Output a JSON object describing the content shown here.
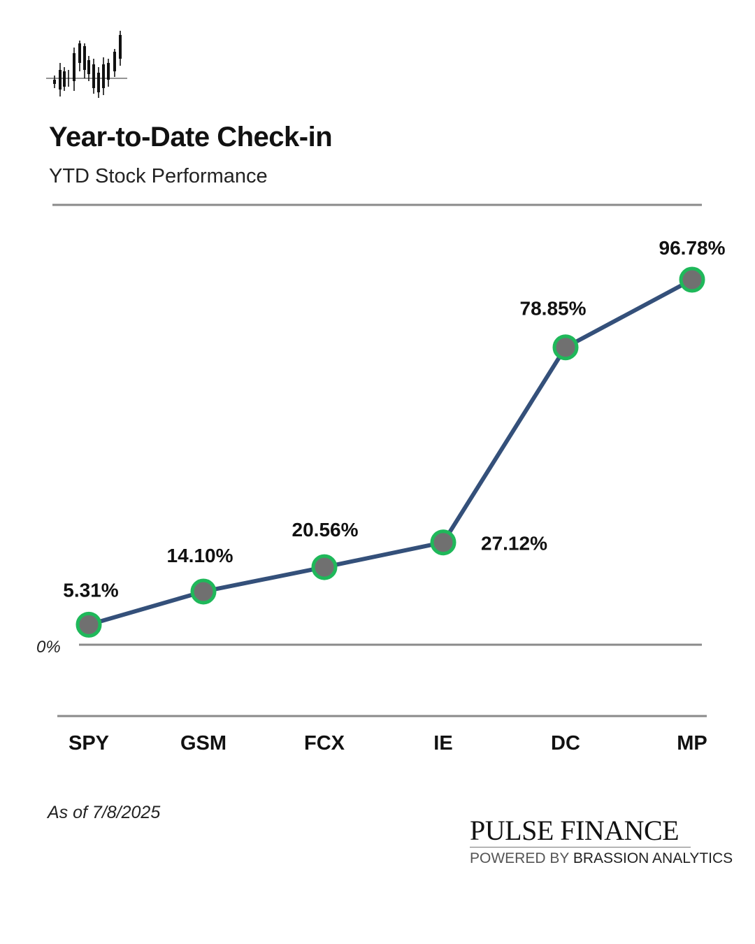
{
  "header": {
    "title": "Year-to-Date Check-in",
    "subtitle": "YTD Stock Performance"
  },
  "footer": {
    "as_of": "As of 7/8/2025",
    "brand_name": "PULSE FINANCE",
    "brand_tag_prefix": "POWERED BY ",
    "brand_tag_name": "BRASSION ANALYTICS"
  },
  "icons": {
    "logo": "candlestick-chart-icon"
  },
  "colors": {
    "line": "#34507a",
    "marker_fill": "#707070",
    "marker_ring": "#1fb85a",
    "rule": "#8a8a8a"
  },
  "chart_data": {
    "type": "line",
    "title": "Year-to-Date Check-in",
    "subtitle": "YTD Stock Performance",
    "categories": [
      "SPY",
      "GSM",
      "FCX",
      "IE",
      "DC",
      "MP"
    ],
    "values": [
      5.31,
      14.1,
      20.56,
      27.12,
      78.85,
      96.78
    ],
    "data_labels": [
      "5.31%",
      "14.10%",
      "20.56%",
      "27.12%",
      "78.85%",
      "96.78%"
    ],
    "baseline_label": "0%",
    "xlabel": "",
    "ylabel": "",
    "ylim": [
      0,
      100
    ],
    "grid": false,
    "legend": "none"
  }
}
